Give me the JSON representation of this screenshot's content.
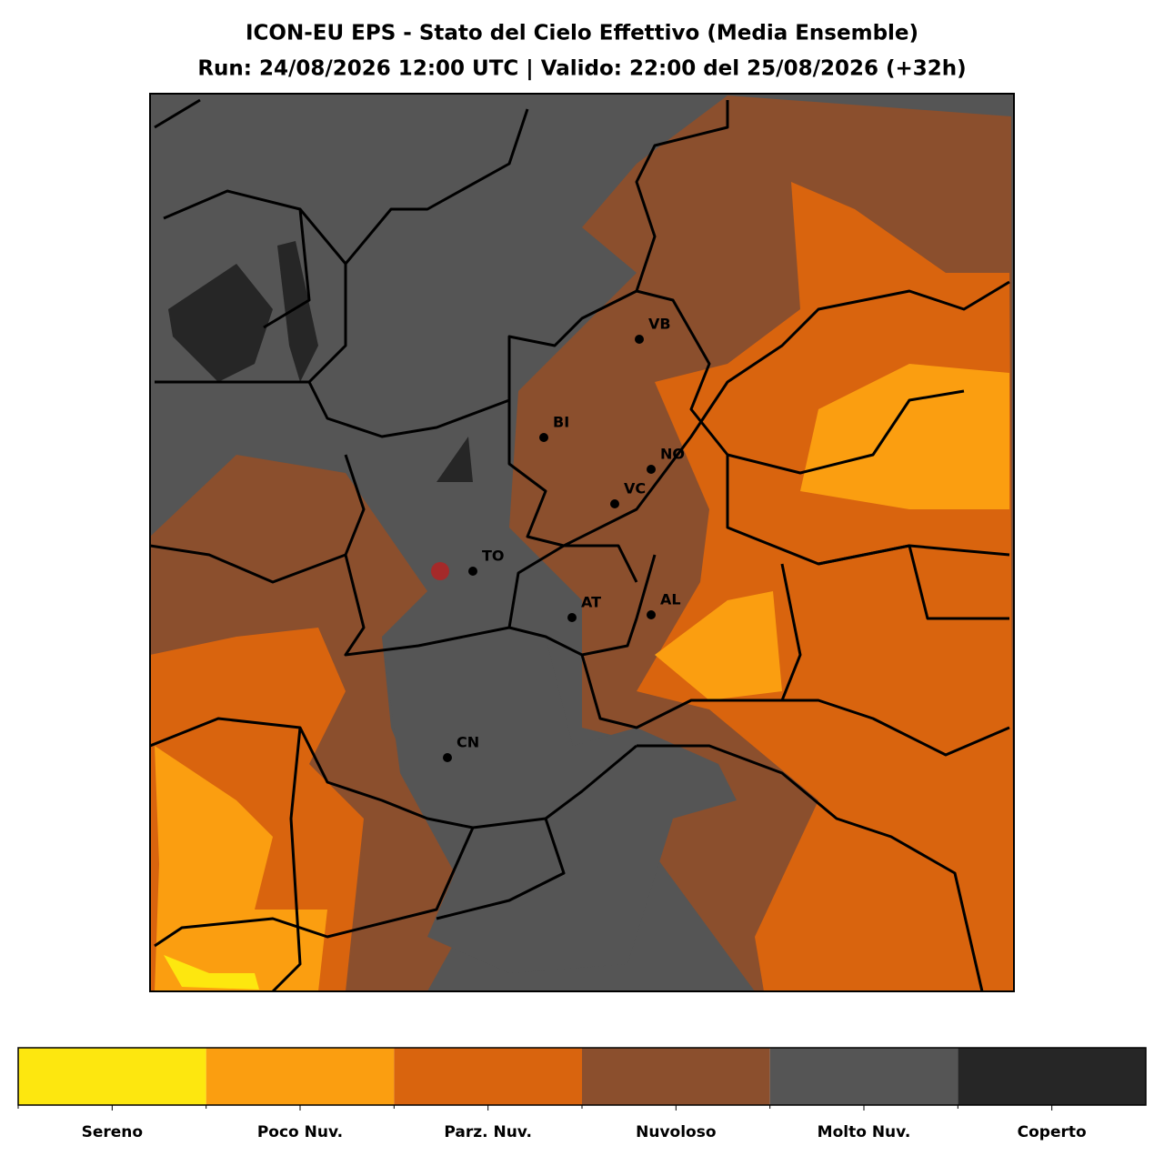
{
  "header": {
    "title": [
      "ICON-EU EPS - Stato del Cielo Effettivo (Media Ensemble)",
      "Run: 24/08/2026 12:00 UTC | Valido: 22:00 del 25/08/2026 (+32h)"
    ]
  },
  "map": {
    "cities": [
      {
        "label": "VB"
      },
      {
        "label": "BI"
      },
      {
        "label": "NO"
      },
      {
        "label": "VC"
      },
      {
        "label": "TO"
      },
      {
        "label": "AT"
      },
      {
        "label": "AL"
      },
      {
        "label": "CN"
      }
    ]
  },
  "colorbar": {
    "classes": [
      {
        "label": "Sereno",
        "color": "#fde70f"
      },
      {
        "label": "Poco Nuv.",
        "color": "#fb9e10"
      },
      {
        "label": "Parz. Nuv.",
        "color": "#d9640e"
      },
      {
        "label": "Nuvoloso",
        "color": "#8b4f2d"
      },
      {
        "label": "Molto Nuv.",
        "color": "#555555"
      },
      {
        "label": "Coperto",
        "color": "#262626"
      }
    ]
  }
}
